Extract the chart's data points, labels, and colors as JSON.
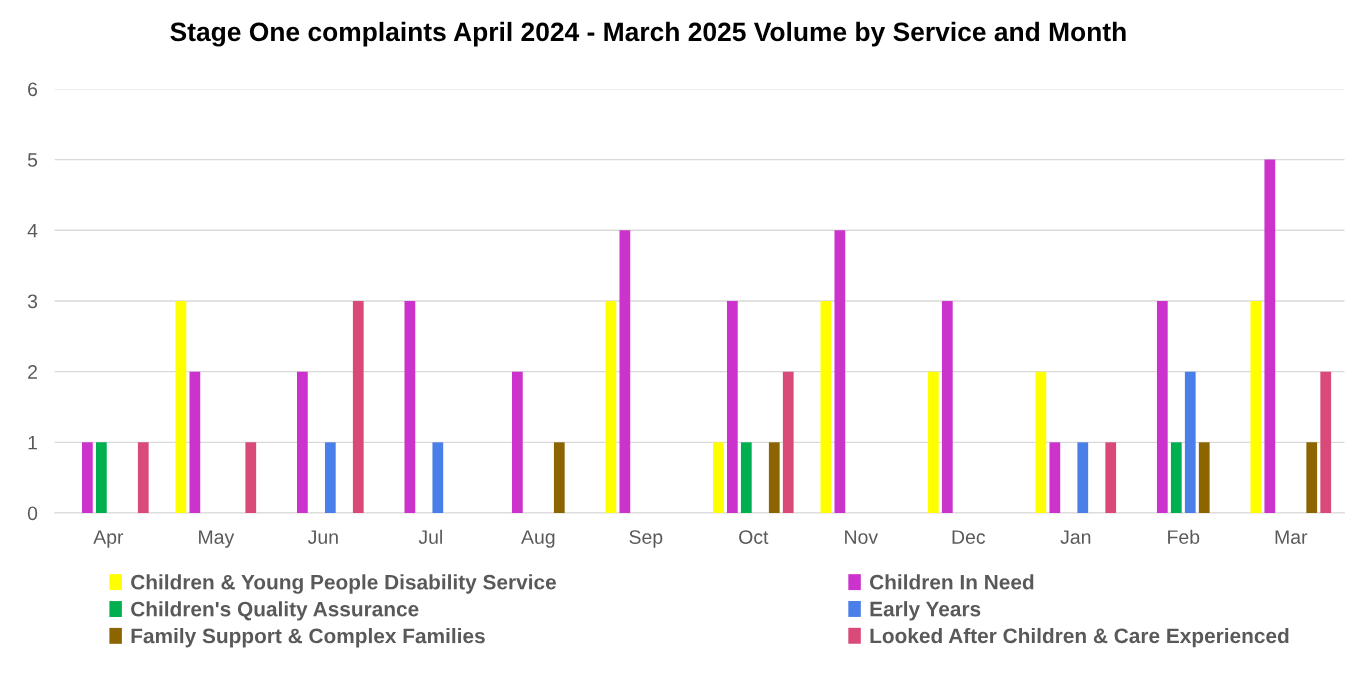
{
  "chart_data": {
    "type": "bar",
    "title": "Stage One complaints April 2024 - March 2025 Volume by Service and Month",
    "categories": [
      "Apr",
      "May",
      "Jun",
      "Jul",
      "Aug",
      "Sep",
      "Oct",
      "Nov",
      "Dec",
      "Jan",
      "Feb",
      "Mar"
    ],
    "series": [
      {
        "name": "Children & Young People Disability Service",
        "color": "#ffff00",
        "values": [
          0,
          3,
          0,
          0,
          0,
          3,
          1,
          3,
          2,
          2,
          0,
          3
        ]
      },
      {
        "name": "Children In Need",
        "color": "#cc33cc",
        "values": [
          1,
          2,
          2,
          3,
          2,
          4,
          3,
          4,
          3,
          1,
          3,
          5
        ]
      },
      {
        "name": "Children's Quality Assurance",
        "color": "#00b050",
        "values": [
          1,
          0,
          0,
          0,
          0,
          0,
          1,
          0,
          0,
          0,
          1,
          0
        ]
      },
      {
        "name": "Early Years",
        "color": "#4a7ee8",
        "values": [
          0,
          0,
          1,
          1,
          0,
          0,
          0,
          0,
          0,
          1,
          2,
          0
        ]
      },
      {
        "name": "Family Support & Complex Families",
        "color": "#8c6400",
        "values": [
          0,
          0,
          0,
          0,
          1,
          0,
          1,
          0,
          0,
          0,
          1,
          1
        ]
      },
      {
        "name": "Looked After Children & Care Experienced",
        "color": "#d94a78",
        "values": [
          1,
          1,
          3,
          0,
          0,
          0,
          2,
          0,
          0,
          1,
          0,
          2
        ]
      }
    ],
    "ylim": [
      0,
      6
    ],
    "yticks": [
      0,
      1,
      2,
      3,
      4,
      5,
      6
    ],
    "grid": "y",
    "legend": "bottom"
  }
}
